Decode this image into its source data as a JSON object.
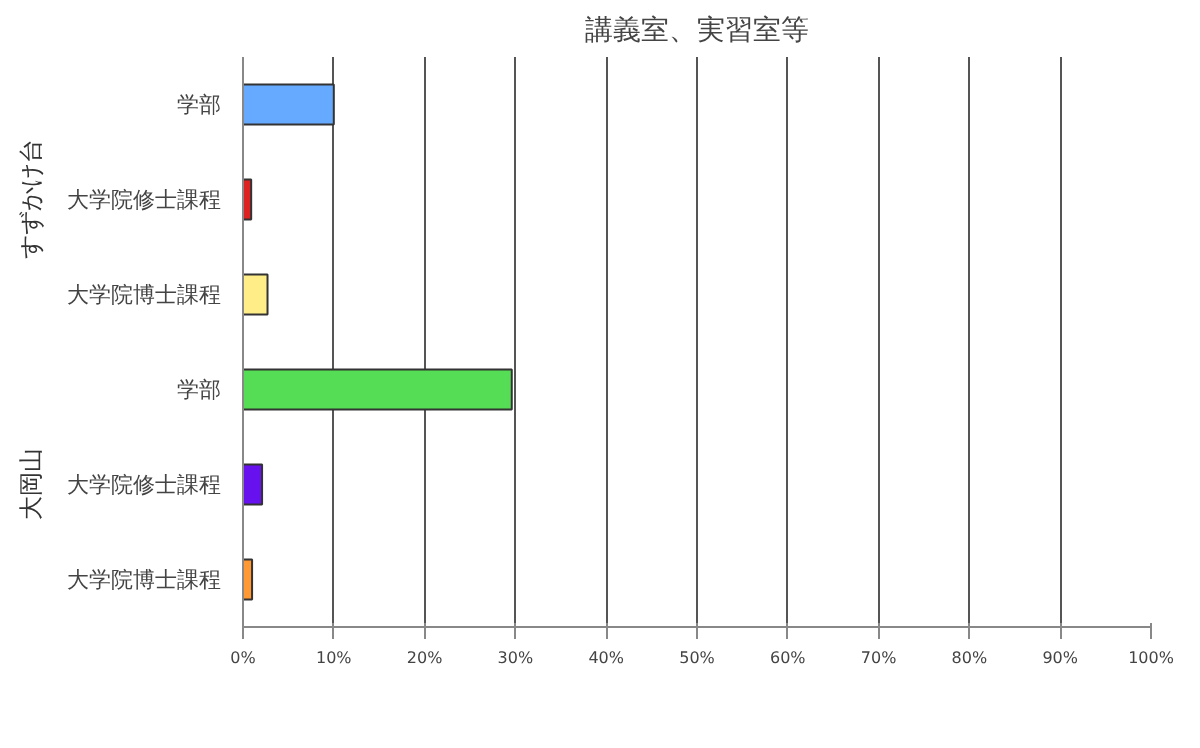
{
  "chart_data": {
    "type": "bar",
    "orientation": "horizontal",
    "title": "講義室、実習室等",
    "categories": [
      "学部",
      "大学院修士課程",
      "大学院博士課程",
      "学部",
      "大学院修士課程",
      "大学院博士課程"
    ],
    "values": [
      10.0,
      0.9,
      2.7,
      29.6,
      2.1,
      1.0
    ],
    "colors": [
      "#66aaff",
      "#dd2222",
      "#ffee88",
      "#55dd55",
      "#6611ee",
      "#ff9933"
    ],
    "annotations": [
      "すずかけ台",
      "大岡山"
    ],
    "xlim": [
      0,
      100
    ],
    "xticks": [
      {
        "value": 0,
        "label": "0%"
      },
      {
        "value": 10,
        "label": "10%"
      },
      {
        "value": 20,
        "label": "20%"
      },
      {
        "value": 30,
        "label": "30%"
      },
      {
        "value": 40,
        "label": "40%"
      },
      {
        "value": 50,
        "label": "50%"
      },
      {
        "value": 60,
        "label": "60%"
      },
      {
        "value": 70,
        "label": "70%"
      },
      {
        "value": 80,
        "label": "80%"
      },
      {
        "value": 90,
        "label": "90%"
      },
      {
        "value": 100,
        "label": "100%"
      }
    ],
    "grid": "x"
  }
}
